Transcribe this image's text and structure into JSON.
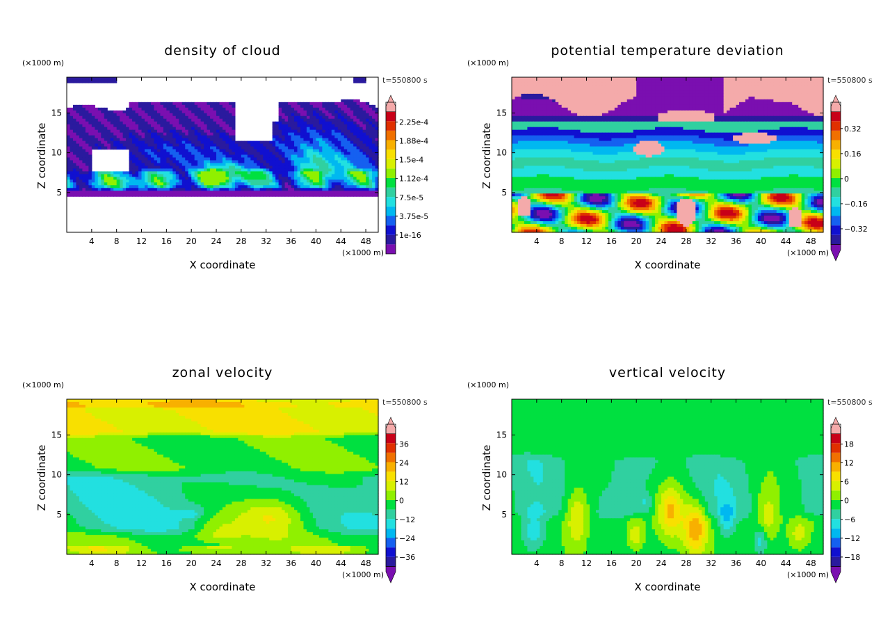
{
  "colors": {
    "palette": [
      "#7a0fb0",
      "#2a1a9e",
      "#1010d0",
      "#1560f0",
      "#00b8f0",
      "#22e0e0",
      "#30d0a0",
      "#00e040",
      "#90f000",
      "#d8f000",
      "#f8e000",
      "#f8b000",
      "#f07000",
      "#e03000",
      "#c80018",
      "#f4aaaa"
    ]
  },
  "chart_data": [
    {
      "type": "heatmap",
      "title": "density of cloud",
      "timestamp": "t=550800 s",
      "xlabel": "X coordinate",
      "ylabel": "Z coordinate",
      "x_unit": "(×1000 m)",
      "y_unit": "(×1000 m)",
      "xlim": [
        0,
        50
      ],
      "ylim": [
        0,
        19.5
      ],
      "x_ticks": [
        "4",
        "8",
        "12",
        "16",
        "20",
        "24",
        "28",
        "32",
        "36",
        "40",
        "44",
        "48"
      ],
      "y_ticks": [
        "5",
        "10",
        "15"
      ],
      "colorbar_labels": [
        "1e-16",
        "3.75e-5",
        "7.5e-5",
        "1.12e-4",
        "1.5e-4",
        "1.88e-4",
        "2.25e-4"
      ],
      "colorbar_range": [
        1e-16,
        0.000225
      ],
      "colorbar_extend": "max"
    },
    {
      "type": "heatmap",
      "title": "potential temperature deviation",
      "timestamp": "t=550800 s",
      "xlabel": "X coordinate",
      "ylabel": "Z coordinate",
      "x_unit": "(×1000 m)",
      "y_unit": "(×1000 m)",
      "xlim": [
        0,
        50
      ],
      "ylim": [
        0,
        19.5
      ],
      "x_ticks": [
        "4",
        "8",
        "12",
        "16",
        "20",
        "24",
        "28",
        "32",
        "36",
        "40",
        "44",
        "48"
      ],
      "y_ticks": [
        "5",
        "10",
        "15"
      ],
      "colorbar_labels": [
        "−0.32",
        "−0.16",
        "0",
        "0.16",
        "0.32"
      ],
      "colorbar_range": [
        -0.4,
        0.4
      ],
      "colorbar_extend": "both"
    },
    {
      "type": "heatmap",
      "title": "zonal velocity",
      "timestamp": "t=550800 s",
      "xlabel": "X coordinate",
      "ylabel": "Z coordinate",
      "x_unit": "(×1000 m)",
      "y_unit": "(×1000 m)",
      "xlim": [
        0,
        50
      ],
      "ylim": [
        0,
        19.5
      ],
      "x_ticks": [
        "4",
        "8",
        "12",
        "16",
        "20",
        "24",
        "28",
        "32",
        "36",
        "40",
        "44",
        "48"
      ],
      "y_ticks": [
        "5",
        "10",
        "15"
      ],
      "colorbar_labels": [
        "−36",
        "−24",
        "−12",
        "0",
        "12",
        "24",
        "36"
      ],
      "colorbar_range": [
        -42,
        42
      ],
      "colorbar_extend": "both"
    },
    {
      "type": "heatmap",
      "title": "vertical velocity",
      "timestamp": "t=550800 s",
      "xlabel": "X coordinate",
      "ylabel": "Z coordinate",
      "x_unit": "(×1000 m)",
      "y_unit": "(×1000 m)",
      "xlim": [
        0,
        50
      ],
      "ylim": [
        0,
        19.5
      ],
      "x_ticks": [
        "4",
        "8",
        "12",
        "16",
        "20",
        "24",
        "28",
        "32",
        "36",
        "40",
        "44",
        "48"
      ],
      "y_ticks": [
        "5",
        "10",
        "15"
      ],
      "colorbar_labels": [
        "−18",
        "−12",
        "−6",
        "0",
        "6",
        "12",
        "18"
      ],
      "colorbar_range": [
        -21,
        21
      ],
      "colorbar_extend": "both"
    }
  ]
}
